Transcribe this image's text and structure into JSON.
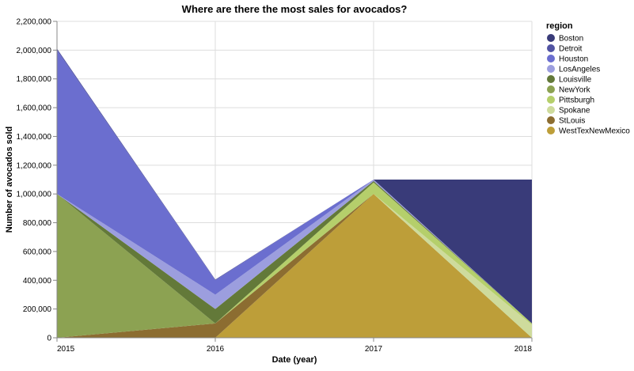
{
  "chart_data": {
    "type": "area",
    "title": "Where are there the most sales for avocados?",
    "xlabel": "Date (year)",
    "ylabel": "Number of avocados sold",
    "x": [
      "2015",
      "2016",
      "2017",
      "2018"
    ],
    "ylim": [
      0,
      2200000
    ],
    "yticks": [
      0,
      200000,
      400000,
      600000,
      800000,
      1000000,
      1200000,
      1400000,
      1600000,
      1800000,
      2000000,
      2200000
    ],
    "ytick_labels": [
      "0",
      "200,000",
      "400,000",
      "600,000",
      "800,000",
      "1,000,000",
      "1,200,000",
      "1,400,000",
      "1,600,000",
      "1,800,000",
      "2,000,000",
      "2,200,000"
    ],
    "stacked": true,
    "grid": true,
    "legend_title": "region",
    "legend_position": "right",
    "series": [
      {
        "name": "Boston",
        "color": "#393b79",
        "values": [
          0,
          0,
          0,
          1000000
        ]
      },
      {
        "name": "Detroit",
        "color": "#5254a3",
        "values": [
          10000,
          5000,
          0,
          0
        ]
      },
      {
        "name": "Houston",
        "color": "#6b6ecf",
        "values": [
          1000000,
          100000,
          0,
          0
        ]
      },
      {
        "name": "LosAngeles",
        "color": "#9c9ede",
        "values": [
          0,
          100000,
          10000,
          0
        ]
      },
      {
        "name": "Louisville",
        "color": "#637939",
        "values": [
          0,
          100000,
          10000,
          0
        ]
      },
      {
        "name": "NewYork",
        "color": "#8ca252",
        "values": [
          1000000,
          0,
          0,
          0
        ]
      },
      {
        "name": "Pittsburgh",
        "color": "#b5cf6b",
        "values": [
          0,
          0,
          80000,
          10000
        ]
      },
      {
        "name": "Spokane",
        "color": "#cedb9c",
        "values": [
          0,
          0,
          0,
          90000
        ]
      },
      {
        "name": "StLouis",
        "color": "#8c6d31",
        "values": [
          0,
          100000,
          0,
          0
        ]
      },
      {
        "name": "WestTexNewMexico",
        "color": "#bd9e39",
        "values": [
          0,
          0,
          1000000,
          0
        ]
      }
    ]
  }
}
